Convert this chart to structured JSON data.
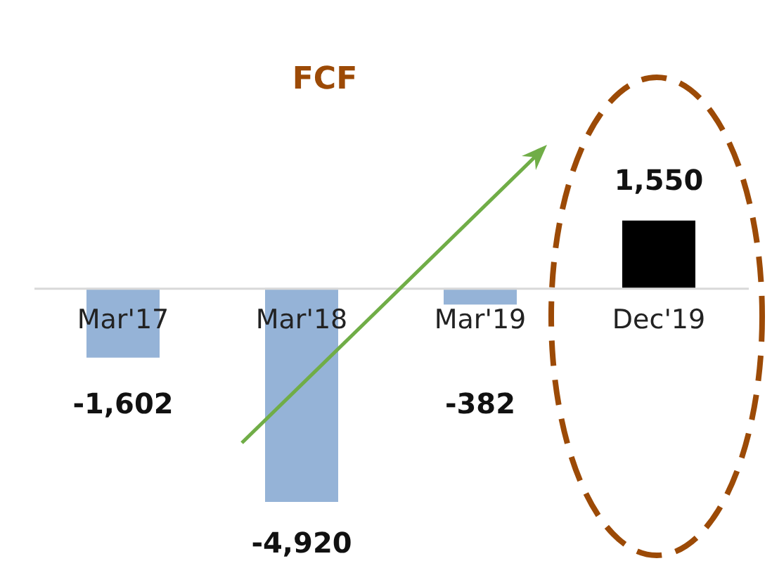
{
  "chart_data": {
    "type": "bar",
    "title": "FCF",
    "categories": [
      "Mar'17",
      "Mar'18",
      "Mar'19",
      "Dec'19"
    ],
    "values": [
      -1602,
      -4920,
      -382,
      1550
    ],
    "colors": [
      "#95b3d7",
      "#95b3d7",
      "#95b3d7",
      "#000000"
    ],
    "value_labels": [
      "-1,602",
      "-4,920",
      "-382",
      "1,550"
    ]
  }
}
